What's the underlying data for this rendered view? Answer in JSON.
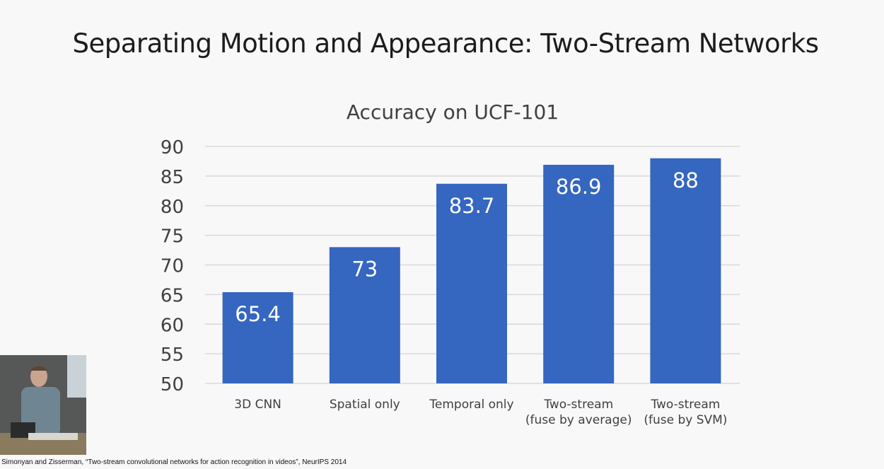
{
  "slide": {
    "title": "Separating Motion and Appearance: Two-Stream Networks",
    "citation": "Simonyan and Zisserman, “Two-stream convolutional networks for action recognition in videos”, NeurIPS 2014"
  },
  "colors": {
    "bar": "#3566c0",
    "grid": "#d9d9d9",
    "text": "#404040"
  },
  "chart_data": {
    "type": "bar",
    "title": "Accuracy on UCF-101",
    "categories": [
      [
        "3D CNN"
      ],
      [
        "Spatial only"
      ],
      [
        "Temporal only"
      ],
      [
        "Two-stream",
        "(fuse by average)"
      ],
      [
        "Two-stream",
        "(fuse by SVM)"
      ]
    ],
    "values": [
      65.4,
      73,
      83.7,
      86.9,
      88
    ],
    "data_labels": [
      "65.4",
      "73",
      "83.7",
      "86.9",
      "88"
    ],
    "xlabel": "",
    "ylabel": "",
    "ylim": [
      50,
      90
    ],
    "yticks": [
      50,
      55,
      60,
      65,
      70,
      75,
      80,
      85,
      90
    ],
    "grid": true,
    "legend": "none"
  }
}
